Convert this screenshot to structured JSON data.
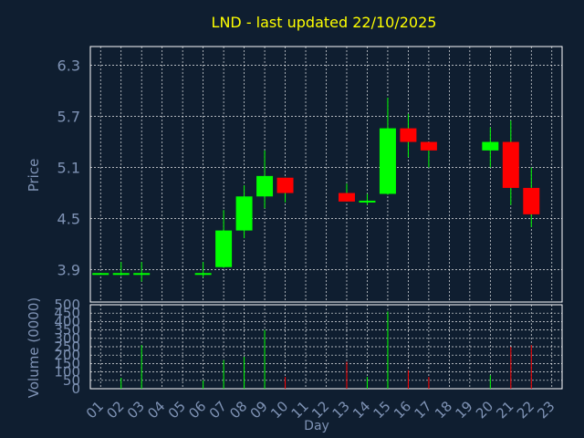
{
  "colors": {
    "background": "#0f1e30",
    "axis_text": "#7f93b5",
    "title": "#ffff00",
    "grid": "#ffffff",
    "up": "#00ff00",
    "down": "#ff0000",
    "wick": "#00ff00"
  },
  "chart_data": {
    "type": "candlestick",
    "title": "LND - last updated 22/10/2025",
    "xlabel": "Day",
    "x_ticks": [
      "01",
      "02",
      "03",
      "04",
      "05",
      "06",
      "07",
      "08",
      "09",
      "10",
      "11",
      "12",
      "13",
      "14",
      "15",
      "16",
      "17",
      "18",
      "19",
      "20",
      "21",
      "22",
      "23"
    ],
    "grid": true,
    "price_panel": {
      "ylabel": "Price",
      "ylim": [
        3.52,
        6.52
      ],
      "y_ticks": [
        "3.9",
        "4.5",
        "5.1",
        "5.7",
        "6.3"
      ],
      "y_tick_values": [
        3.9,
        4.5,
        5.1,
        5.7,
        6.3
      ]
    },
    "volume_panel": {
      "ylabel": "Volume (0000)",
      "ylim": [
        0,
        500
      ],
      "y_ticks": [
        "0",
        "50",
        "100",
        "150",
        "200",
        "250",
        "300",
        "350",
        "400",
        "450",
        "500"
      ],
      "y_tick_values": [
        0,
        50,
        100,
        150,
        200,
        250,
        300,
        350,
        400,
        450,
        500
      ]
    },
    "candles": [
      {
        "day": "01",
        "open": 3.85,
        "high": 3.86,
        "low": 3.84,
        "close": 3.86,
        "volume": 0
      },
      {
        "day": "02",
        "open": 3.85,
        "high": 3.99,
        "low": 3.83,
        "close": 3.86,
        "volume": 65
      },
      {
        "day": "03",
        "open": 3.85,
        "high": 3.99,
        "low": 3.76,
        "close": 3.86,
        "volume": 260
      },
      {
        "day": "06",
        "open": 3.85,
        "high": 3.99,
        "low": 3.81,
        "close": 3.86,
        "volume": 50
      },
      {
        "day": "07",
        "open": 3.93,
        "high": 4.6,
        "low": 3.92,
        "close": 4.36,
        "volume": 170
      },
      {
        "day": "08",
        "open": 4.36,
        "high": 4.89,
        "low": 4.27,
        "close": 4.76,
        "volume": 190
      },
      {
        "day": "09",
        "open": 4.76,
        "high": 5.3,
        "low": 4.62,
        "close": 5.0,
        "volume": 350
      },
      {
        "day": "10",
        "open": 4.98,
        "high": 4.98,
        "low": 4.69,
        "close": 4.8,
        "volume": 70
      },
      {
        "day": "13",
        "open": 4.8,
        "high": 4.91,
        "low": 4.7,
        "close": 4.7,
        "volume": 160
      },
      {
        "day": "14",
        "open": 4.69,
        "high": 4.79,
        "low": 4.66,
        "close": 4.71,
        "volume": 70
      },
      {
        "day": "15",
        "open": 4.79,
        "high": 5.92,
        "low": 4.78,
        "close": 5.56,
        "volume": 460
      },
      {
        "day": "16",
        "open": 5.56,
        "high": 5.73,
        "low": 5.22,
        "close": 5.4,
        "volume": 110
      },
      {
        "day": "17",
        "open": 5.4,
        "high": 5.4,
        "low": 5.1,
        "close": 5.3,
        "volume": 70
      },
      {
        "day": "20",
        "open": 5.3,
        "high": 5.57,
        "low": 5.1,
        "close": 5.4,
        "volume": 80
      },
      {
        "day": "21",
        "open": 5.4,
        "high": 5.65,
        "low": 4.66,
        "close": 4.86,
        "volume": 250
      },
      {
        "day": "22",
        "open": 4.86,
        "high": 5.1,
        "low": 4.4,
        "close": 4.55,
        "volume": 260
      }
    ]
  }
}
